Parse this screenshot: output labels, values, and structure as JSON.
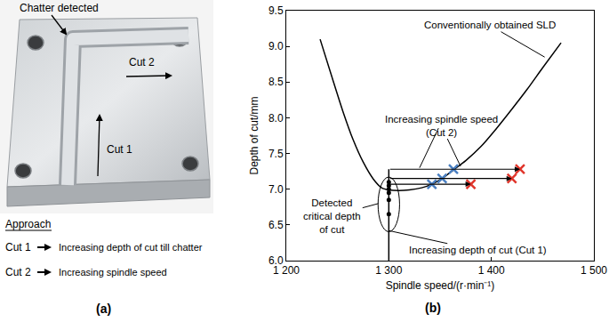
{
  "chart_data": {
    "type": "line",
    "x_label": "Spindle speed/(r·min⁻¹)",
    "y_label": "Depth of cut/mm",
    "xlim": [
      1200,
      1500
    ],
    "xticks": [
      {
        "value": 1200,
        "label": "1 200"
      },
      {
        "value": 1300,
        "label": "1 300"
      },
      {
        "value": 1400,
        "label": "1 400"
      },
      {
        "value": 1500,
        "label": "1 500"
      }
    ],
    "ylim": [
      6,
      9.5
    ],
    "yticks": [
      {
        "value": 6,
        "label": "6.0"
      },
      6.5,
      {
        "value": 7,
        "label": "7.0"
      },
      7.5,
      {
        "value": 8,
        "label": "8.0"
      },
      8.5,
      {
        "value": 9,
        "label": "9.0"
      },
      9.5
    ],
    "grid": false,
    "series": [
      {
        "type": "line",
        "line_style": "solid",
        "color": "#000000",
        "x": [
          1233,
          1245,
          1255,
          1265,
          1275,
          1285,
          1293,
          1300,
          1310,
          1320,
          1332,
          1342,
          1352,
          1363,
          1375,
          1390,
          1405,
          1420,
          1435,
          1450,
          1468
        ],
        "values": [
          9.1,
          8.55,
          8.1,
          7.7,
          7.38,
          7.14,
          7.02,
          6.99,
          6.98,
          6.99,
          7.02,
          7.07,
          7.15,
          7.27,
          7.4,
          7.6,
          7.85,
          8.12,
          8.4,
          8.7,
          9.05
        ]
      },
      {
        "type": "line",
        "line_style": "solid",
        "color": "#000000",
        "x": [
          1300,
          1300
        ],
        "values": [
          6.0,
          7.28
        ]
      },
      {
        "type": "line",
        "line_style": "arrow",
        "color": "#000000",
        "x": [
          1300,
          1380
        ],
        "values": [
          7.07,
          7.07
        ]
      },
      {
        "type": "line",
        "line_style": "arrow",
        "color": "#000000",
        "x": [
          1300,
          1420
        ],
        "values": [
          7.15,
          7.15
        ]
      },
      {
        "type": "line",
        "line_style": "arrow",
        "color": "#000000",
        "x": [
          1300,
          1428
        ],
        "values": [
          7.28,
          7.28
        ]
      },
      {
        "type": "scatter",
        "marker": "circle",
        "color": "#000000",
        "x": [
          1300,
          1300,
          1300,
          1300,
          1300,
          1300
        ],
        "values": [
          6.65,
          6.85,
          6.95,
          7.0,
          7.05,
          7.1
        ]
      },
      {
        "type": "scatter",
        "marker": "x",
        "color": "#4a7fc1",
        "x": [
          1342,
          1352,
          1363
        ],
        "values": [
          7.07,
          7.15,
          7.28
        ]
      },
      {
        "type": "scatter",
        "marker": "x",
        "color": "#e0352b",
        "x": [
          1380,
          1420,
          1428
        ],
        "values": [
          7.07,
          7.15,
          7.28
        ]
      }
    ],
    "annotations": [
      {
        "text": [
          "Conventionally obtained SLD"
        ],
        "points": [
          [
            1452,
            8.85
          ]
        ]
      },
      {
        "text": [
          "Increasing spindle speed",
          "(Cut 2)"
        ],
        "points": [
          [
            1370,
            7.32
          ],
          [
            1330,
            7.3
          ]
        ]
      },
      {
        "text": [
          "Detected",
          "critical depth",
          "of cut"
        ],
        "points": [
          [
            1290,
            6.8
          ]
        ]
      },
      {
        "text": [
          "Increasing depth of cut (Cut 1)"
        ],
        "points": [
          [
            1300,
            6.42
          ]
        ]
      }
    ]
  },
  "panel_a": {
    "chatter": "Chatter detected",
    "cut1": "Cut 1",
    "cut2": "Cut 2",
    "approach_title": "Approach",
    "approach": [
      {
        "cut": "Cut 1",
        "description": "Increasing depth of cut till chatter"
      },
      {
        "cut": "Cut 2",
        "description": "Increasing spindle speed"
      }
    ]
  },
  "panel_labels": [
    "(a)",
    "(b)"
  ]
}
